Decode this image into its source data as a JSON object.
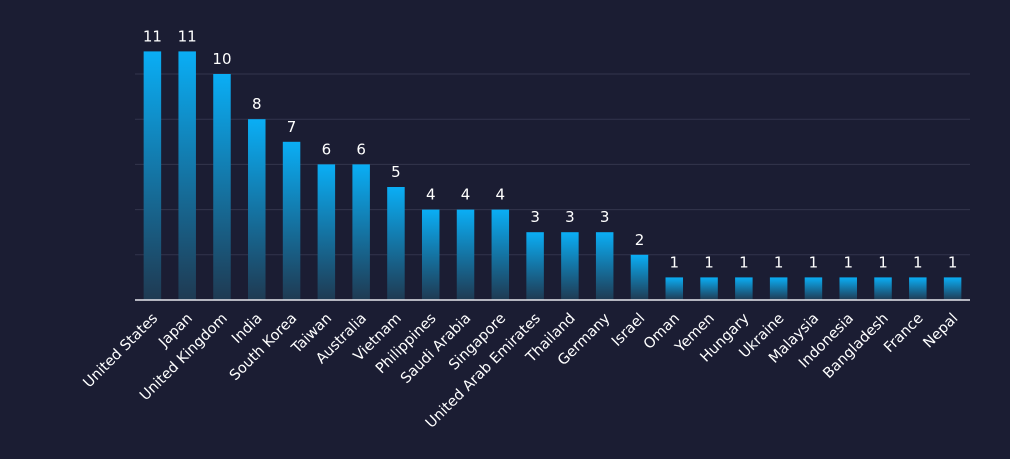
{
  "chart_data": {
    "type": "bar",
    "title": "",
    "xlabel": "",
    "ylabel": "",
    "ylim": [
      0,
      11.5
    ],
    "grid": true,
    "legend": "none",
    "categories": [
      "United States",
      "Japan",
      "United Kingdom",
      "India",
      "South Korea",
      "Taiwan",
      "Australia",
      "Vietnam",
      "Philippines",
      "Saudi Arabia",
      "Singapore",
      "United Arab Emirates",
      "Thailand",
      "Germany",
      "Israel",
      "Oman",
      "Yemen",
      "Hungary",
      "Ukraine",
      "Malaysia",
      "Indonesia",
      "Bangladesh",
      "France",
      "Nepal"
    ],
    "values": [
      11,
      11,
      10,
      8,
      7,
      6,
      6,
      5,
      4,
      4,
      4,
      3,
      3,
      3,
      2,
      1,
      1,
      1,
      1,
      1,
      1,
      1,
      1,
      1
    ],
    "data_labels": [
      "11",
      "11",
      "10",
      "8",
      "7",
      "6",
      "6",
      "5",
      "4",
      "4",
      "4",
      "3",
      "3",
      "3",
      "2",
      "1",
      "1",
      "1",
      "1",
      "1",
      "1",
      "1",
      "1",
      "1"
    ],
    "colors": {
      "background": "#1b1d33",
      "bar_top": "#0aaef5",
      "bar_bottom": "#1f3a52",
      "grid": "#33354d",
      "axis": "#e8e8ee",
      "text": "#ffffff"
    }
  }
}
